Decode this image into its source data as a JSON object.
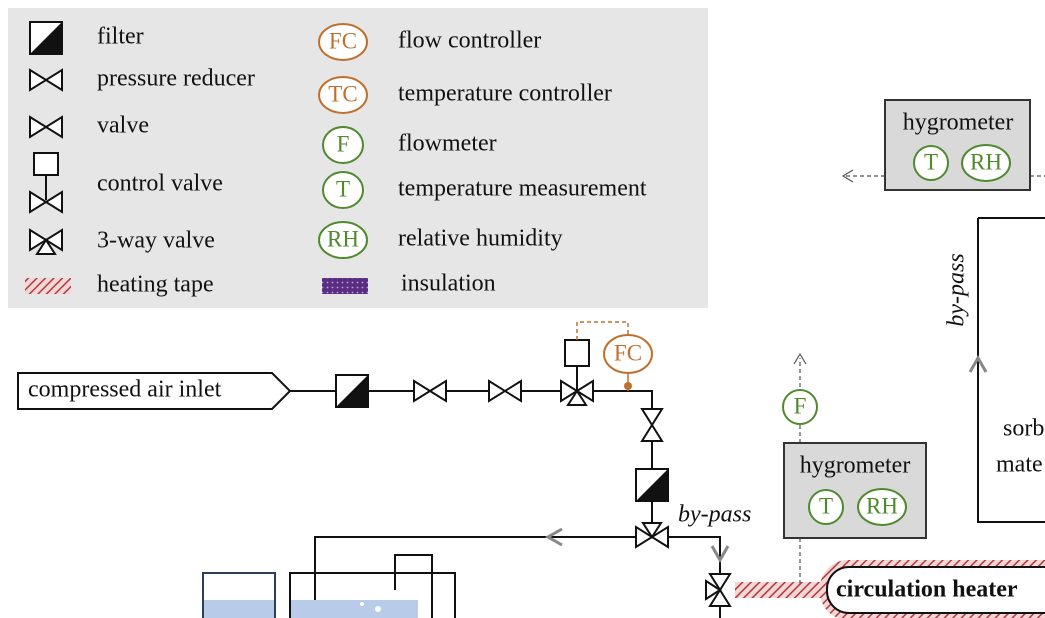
{
  "legend": {
    "symbols": [
      "filter",
      "pressure reducer",
      "valve",
      "control valve",
      "3-way valve",
      "heating tape"
    ],
    "instruments": [
      {
        "code": "FC",
        "label": "flow controller"
      },
      {
        "code": "TC",
        "label": "temperature controller"
      },
      {
        "code": "F",
        "label": "flowmeter"
      },
      {
        "code": "T",
        "label": "temperature measurement"
      },
      {
        "code": "RH",
        "label": "relative humidity"
      }
    ],
    "insulation": "insulation"
  },
  "diagram": {
    "inlet": "compressed air inlet",
    "flow_controller": "FC",
    "flowmeter": "F",
    "hygrometer_top": {
      "title": "hygrometer",
      "t": "T",
      "rh": "RH"
    },
    "hygrometer_mid": {
      "title": "hygrometer",
      "t": "T",
      "rh": "RH"
    },
    "bypass_mid": "by-pass",
    "bypass_right": "by-pass",
    "sorbent": [
      "sorb",
      "mate"
    ],
    "heater": "circulation heater"
  }
}
